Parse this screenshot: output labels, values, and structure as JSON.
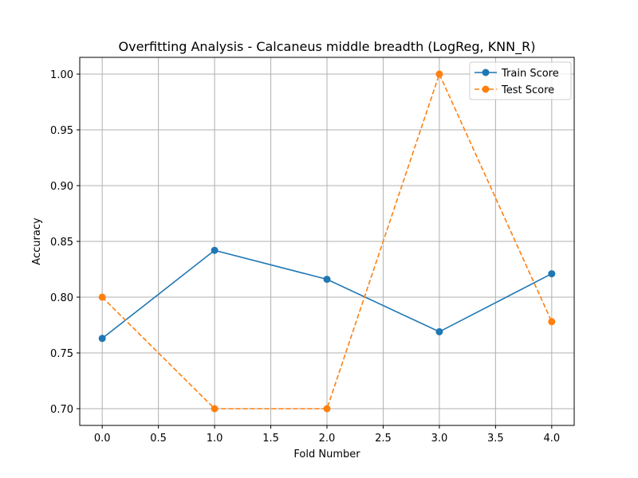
{
  "chart_data": {
    "type": "line",
    "title": "Overfitting Analysis - Calcaneus middle breadth (LogReg, KNN_R)",
    "xlabel": "Fold Number",
    "ylabel": "Accuracy",
    "x": [
      0,
      1,
      2,
      3,
      4
    ],
    "xlim": [
      -0.2,
      4.2
    ],
    "ylim": [
      0.685,
      1.015
    ],
    "xticks": [
      "0.0",
      "0.5",
      "1.0",
      "1.5",
      "2.0",
      "2.5",
      "3.0",
      "3.5",
      "4.0"
    ],
    "yticks": [
      "0.70",
      "0.75",
      "0.80",
      "0.85",
      "0.90",
      "0.95",
      "1.00"
    ],
    "grid": true,
    "legend_position": "top-right",
    "series": [
      {
        "name": "Train Score",
        "color": "#1f77b4",
        "line_style": "solid",
        "marker": "circle",
        "values": [
          0.763,
          0.842,
          0.816,
          0.769,
          0.821
        ]
      },
      {
        "name": "Test Score",
        "color": "#ff7f0e",
        "line_style": "dashed",
        "marker": "circle",
        "values": [
          0.8,
          0.7,
          0.7,
          1.0,
          0.778
        ]
      }
    ]
  }
}
